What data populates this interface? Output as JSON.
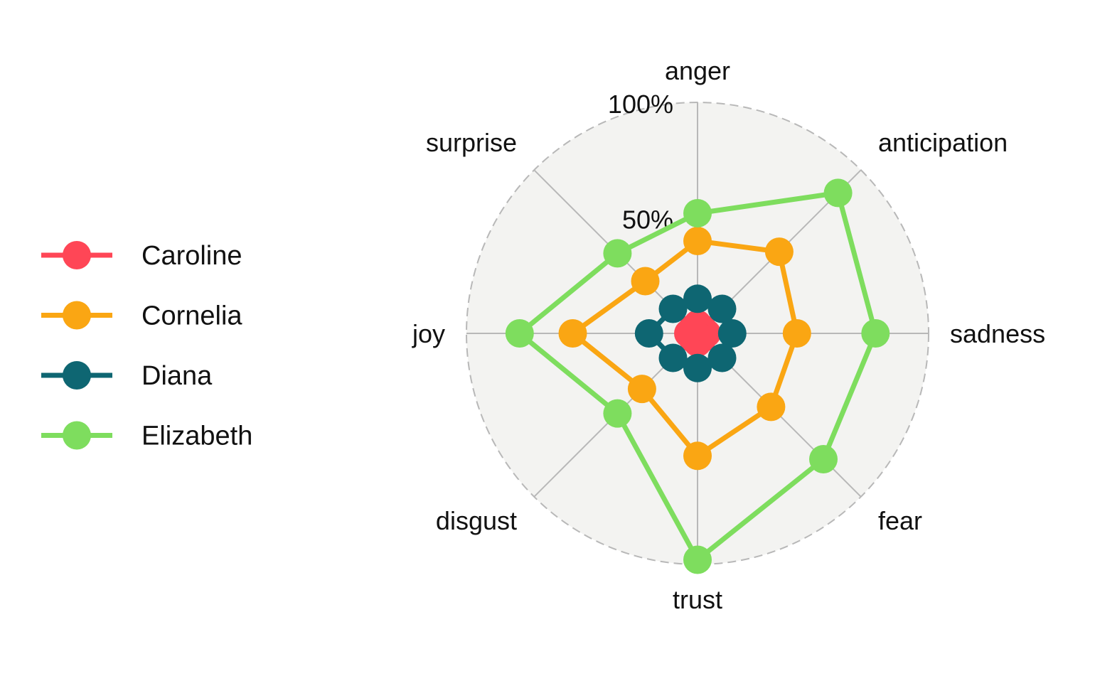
{
  "chart_data": {
    "type": "radar",
    "axes": [
      "anger",
      "anticipation",
      "sadness",
      "fear",
      "trust",
      "disgust",
      "joy",
      "surprise"
    ],
    "r_ticks": [
      "50%",
      "100%"
    ],
    "rlim": [
      0,
      100
    ],
    "legend_position": "left",
    "series": [
      {
        "name": "Caroline",
        "color": "#FF4656",
        "values": [
          4,
          3,
          4,
          3,
          4,
          3,
          4,
          3
        ]
      },
      {
        "name": "Cornelia",
        "color": "#FAA613",
        "values": [
          40,
          50,
          43,
          45,
          53,
          34,
          54,
          32
        ]
      },
      {
        "name": "Diana",
        "color": "#0E6672",
        "values": [
          15,
          15,
          15,
          15,
          15,
          15,
          21,
          15
        ]
      },
      {
        "name": "Elizabeth",
        "color": "#7EDD5E",
        "values": [
          52,
          86,
          77,
          77,
          98,
          49,
          77,
          49
        ]
      }
    ],
    "styles": {
      "plot_background": "#F3F3F1",
      "spoke_color": "#B8B8B8",
      "outer_ring": "#B8B8B8"
    }
  }
}
